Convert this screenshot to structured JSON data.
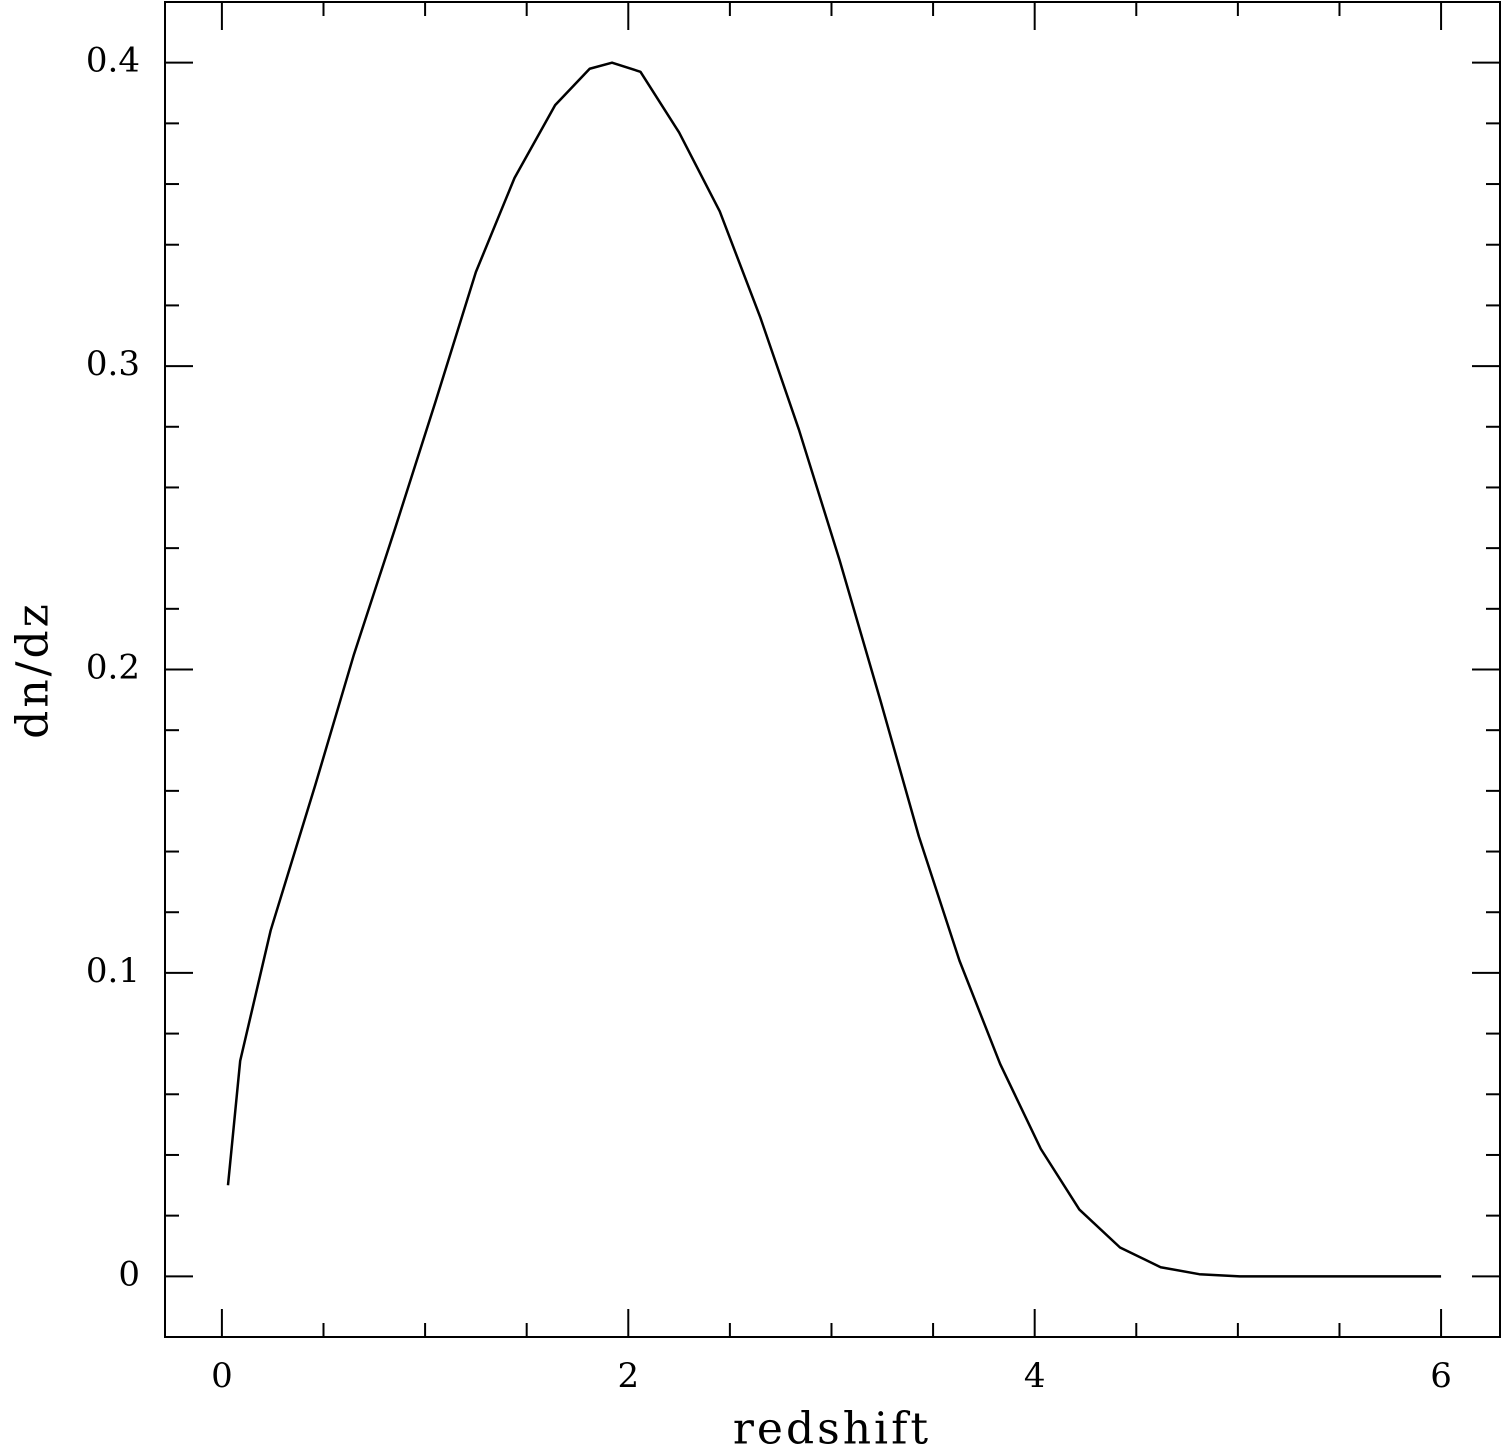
{
  "chart_data": {
    "type": "line",
    "xlabel": "redshift",
    "ylabel": "dn/dz",
    "x": [
      0.03,
      0.09,
      0.24,
      0.46,
      0.65,
      0.85,
      1.05,
      1.25,
      1.44,
      1.64,
      1.81,
      1.92,
      2.06,
      2.25,
      2.45,
      2.65,
      2.84,
      3.04,
      3.24,
      3.43,
      3.63,
      3.83,
      4.03,
      4.22,
      4.42,
      4.62,
      4.81,
      5.01,
      6.0
    ],
    "values": [
      0.03,
      0.071,
      0.114,
      0.162,
      0.205,
      0.246,
      0.288,
      0.331,
      0.362,
      0.386,
      0.398,
      0.4,
      0.397,
      0.377,
      0.351,
      0.316,
      0.279,
      0.236,
      0.19,
      0.145,
      0.104,
      0.07,
      0.042,
      0.022,
      0.0095,
      0.003,
      0.0007,
      0,
      0
    ],
    "color": "#000000",
    "xlim": [
      -0.28,
      6.29
    ],
    "ylim": [
      -0.02,
      0.42
    ],
    "xticks": [
      0,
      2,
      4,
      6
    ],
    "yticks": [
      0,
      0.1,
      0.2,
      0.3,
      0.4
    ],
    "xminorticks": [
      0.5,
      1,
      1.5,
      2.5,
      3,
      3.5,
      4.5,
      5,
      5.5
    ],
    "yminorticks": [
      0.02,
      0.04,
      0.06,
      0.08,
      0.12,
      0.14,
      0.16,
      0.18,
      0.22,
      0.24,
      0.26,
      0.28,
      0.32,
      0.34,
      0.36,
      0.38
    ]
  }
}
